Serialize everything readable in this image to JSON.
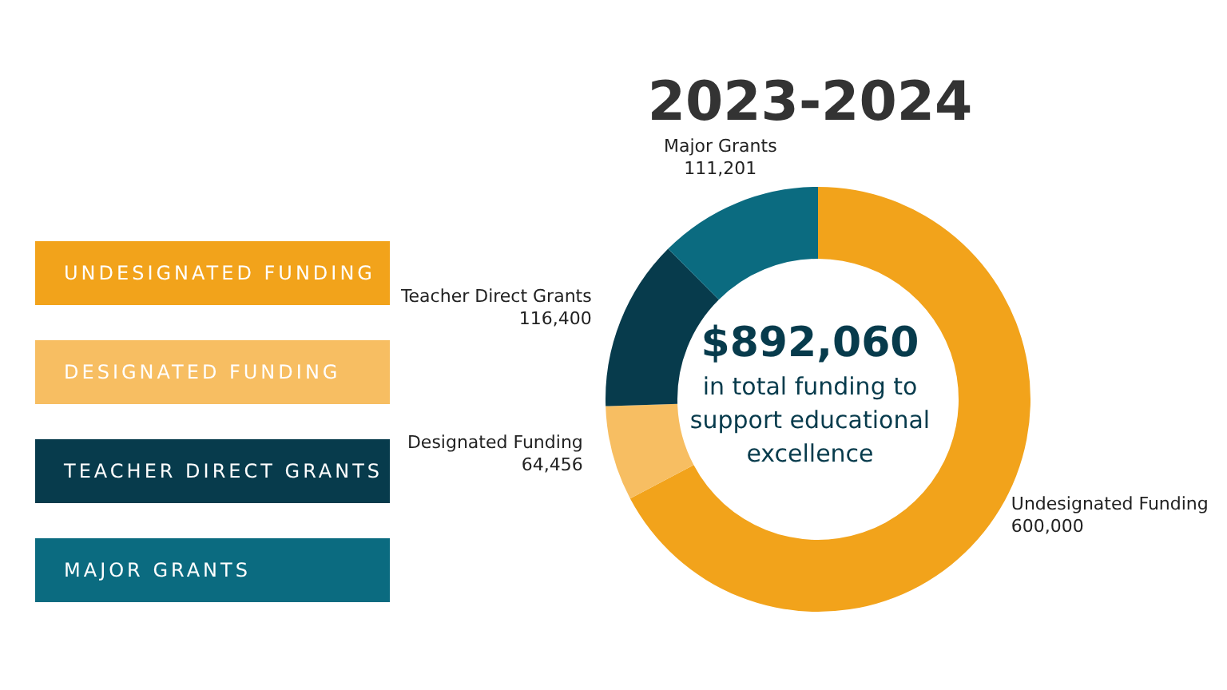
{
  "chart_data": {
    "type": "donut",
    "title": "2023-2024",
    "categories": [
      "Undesignated Funding",
      "Designated Funding",
      "Teacher Direct Grants",
      "Major Grants"
    ],
    "values": [
      600000,
      64456,
      116400,
      111201
    ],
    "colors": [
      "#f2a31b",
      "#f7be62",
      "#073b4c",
      "#0b6b80"
    ],
    "value_labels": [
      "600,000",
      "64,456",
      "116,400",
      "111,201"
    ],
    "annotations": [
      "$892,060",
      "in total funding to support educational excellence",
      "UNDESIGNATED FUNDING",
      "DESIGNATED FUNDING",
      "TEACHER DIRECT GRANTS",
      "MAJOR GRANTS"
    ]
  }
}
